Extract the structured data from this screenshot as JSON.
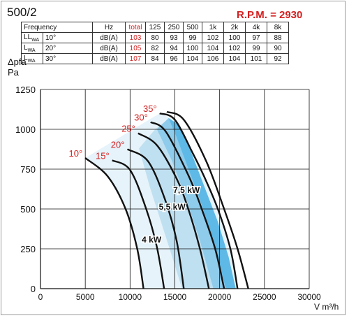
{
  "header": {
    "model": "500/2",
    "rpm": "R.P.M. = 2930"
  },
  "noise_table": {
    "columns": [
      "Frequency",
      "",
      "Hz",
      "total",
      "125",
      "250",
      "500",
      "1k",
      "2k",
      "4k",
      "8k"
    ],
    "rows": [
      {
        "label": "LWA",
        "angle": "10°",
        "unit": "dB(A)",
        "total": "103",
        "bands": [
          "80",
          "93",
          "99",
          "102",
          "100",
          "97",
          "88"
        ]
      },
      {
        "label": "LWA",
        "angle": "20°",
        "unit": "dB(A)",
        "total": "105",
        "bands": [
          "82",
          "94",
          "100",
          "104",
          "102",
          "99",
          "90"
        ]
      },
      {
        "label": "LWA",
        "angle": "30°",
        "unit": "dB(A)",
        "total": "107",
        "bands": [
          "84",
          "96",
          "104",
          "106",
          "104",
          "101",
          "92"
        ]
      }
    ]
  },
  "colors": {
    "accent_red": "#d42020",
    "band_light": "#e6f3fa",
    "band_mid": "#bfe0f1",
    "band_dark": "#8fcbea",
    "band_peak": "#5eb9e6",
    "curve": "#111111"
  },
  "chart_data": {
    "type": "line",
    "ylabel_line1": "Δpfa",
    "ylabel_line2": "Pa",
    "xlabel": "V m³/h",
    "xlim": [
      0,
      30000
    ],
    "ylim": [
      0,
      1250
    ],
    "xticks": [
      0,
      5000,
      10000,
      15000,
      20000,
      25000,
      30000
    ],
    "yticks": [
      0,
      250,
      500,
      750,
      1000,
      1250
    ],
    "grid": true,
    "series": [
      {
        "name": "10°",
        "points": [
          [
            5000,
            820
          ],
          [
            7500,
            705
          ],
          [
            9500,
            500
          ],
          [
            10800,
            250
          ],
          [
            11500,
            0
          ]
        ]
      },
      {
        "name": "15°",
        "points": [
          [
            8000,
            805
          ],
          [
            10000,
            745
          ],
          [
            11800,
            500
          ],
          [
            13000,
            260
          ],
          [
            13800,
            0
          ]
        ]
      },
      {
        "name": "20°",
        "points": [
          [
            9700,
            875
          ],
          [
            12000,
            800
          ],
          [
            13900,
            560
          ],
          [
            15200,
            300
          ],
          [
            16000,
            0
          ]
        ]
      },
      {
        "name": "25°",
        "points": [
          [
            10900,
            975
          ],
          [
            13000,
            900
          ],
          [
            15200,
            690
          ],
          [
            16500,
            500
          ],
          [
            17800,
            250
          ],
          [
            18800,
            0
          ]
        ]
      },
      {
        "name": "30°",
        "points": [
          [
            12300,
            1045
          ],
          [
            14000,
            985
          ],
          [
            16600,
            700
          ],
          [
            18000,
            500
          ],
          [
            19500,
            250
          ],
          [
            20500,
            0
          ]
        ]
      },
      {
        "name": "35°",
        "points": [
          [
            13300,
            1100
          ],
          [
            15000,
            1060
          ],
          [
            17000,
            850
          ],
          [
            18300,
            700
          ],
          [
            19800,
            500
          ],
          [
            21200,
            250
          ],
          [
            22000,
            0
          ]
        ]
      },
      {
        "name": "",
        "points": [
          [
            14100,
            1110
          ],
          [
            16000,
            1060
          ],
          [
            18500,
            800
          ],
          [
            20500,
            500
          ],
          [
            22000,
            250
          ],
          [
            23200,
            0
          ]
        ]
      }
    ],
    "angle_labels": [
      "10°",
      "15°",
      "20°",
      "25°",
      "30°",
      "35°"
    ],
    "power_labels": [
      {
        "text": "4 kW",
        "x": 12400,
        "y": 290
      },
      {
        "text": "5,5 kW",
        "x": 14700,
        "y": 495
      },
      {
        "text": "7,5 kW",
        "x": 16300,
        "y": 600
      }
    ],
    "power_bands": [
      {
        "level": "band_light",
        "polygon": [
          [
            5000,
            820
          ],
          [
            13300,
            1100
          ],
          [
            15000,
            1060
          ],
          [
            17000,
            850
          ],
          [
            18300,
            700
          ],
          [
            19800,
            500
          ],
          [
            21200,
            250
          ],
          [
            22000,
            0
          ],
          [
            11500,
            0
          ],
          [
            10800,
            250
          ],
          [
            9500,
            500
          ],
          [
            7500,
            705
          ]
        ]
      },
      {
        "level": "band_mid",
        "polygon": [
          [
            11000,
            880
          ],
          [
            12800,
            1000
          ],
          [
            14300,
            1065
          ],
          [
            15300,
            1030
          ],
          [
            16600,
            860
          ],
          [
            18200,
            620
          ],
          [
            19600,
            420
          ],
          [
            20800,
            230
          ],
          [
            21600,
            0
          ],
          [
            15800,
            0
          ],
          [
            14700,
            200
          ],
          [
            13400,
            430
          ],
          [
            12200,
            640
          ]
        ]
      },
      {
        "level": "band_dark",
        "polygon": [
          [
            13000,
            1000
          ],
          [
            14300,
            1070
          ],
          [
            15400,
            1030
          ],
          [
            16800,
            860
          ],
          [
            18200,
            640
          ],
          [
            19700,
            410
          ],
          [
            20900,
            200
          ],
          [
            21600,
            0
          ],
          [
            19300,
            0
          ],
          [
            17800,
            300
          ],
          [
            16300,
            560
          ],
          [
            14700,
            800
          ]
        ]
      },
      {
        "level": "band_peak",
        "polygon": [
          [
            14300,
            1070
          ],
          [
            15400,
            1030
          ],
          [
            16800,
            860
          ],
          [
            18300,
            640
          ],
          [
            19800,
            420
          ],
          [
            21000,
            200
          ],
          [
            21800,
            0
          ],
          [
            20700,
            0
          ],
          [
            19300,
            300
          ],
          [
            17800,
            560
          ],
          [
            16200,
            800
          ],
          [
            15200,
            950
          ]
        ]
      }
    ]
  }
}
